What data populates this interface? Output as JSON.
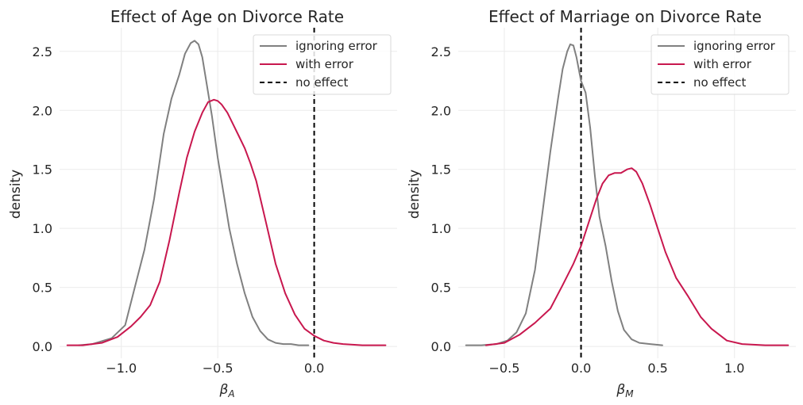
{
  "colors": {
    "ignoring": "#808080",
    "with_error": "#c8174e",
    "no_effect": "#000000"
  },
  "chart_data": [
    {
      "type": "line",
      "title": "Effect of Age on Divorce Rate",
      "xlabel_main": "β",
      "xlabel_sub": "A",
      "ylabel": "density",
      "xlim": [
        -1.32,
        0.43
      ],
      "ylim": [
        -0.1,
        2.7
      ],
      "xticks": [
        -1.0,
        -0.5,
        0.0
      ],
      "xtick_labels": [
        "−1.0",
        "−0.5",
        "0.0"
      ],
      "yticks": [
        0.0,
        0.5,
        1.0,
        1.5,
        2.0,
        2.5
      ],
      "ytick_labels": [
        "0.0",
        "0.5",
        "1.0",
        "1.5",
        "2.0",
        "2.5"
      ],
      "legend": {
        "position": "top-right",
        "entries": [
          "ignoring error",
          "with error",
          "no effect"
        ]
      },
      "vline": {
        "x": 0.0,
        "label": "no effect"
      },
      "series": [
        {
          "name": "ignoring error",
          "color": "#808080",
          "x": [
            -1.22,
            -1.15,
            -1.05,
            -0.98,
            -0.93,
            -0.88,
            -0.83,
            -0.78,
            -0.74,
            -0.7,
            -0.67,
            -0.64,
            -0.62,
            -0.6,
            -0.58,
            -0.56,
            -0.53,
            -0.5,
            -0.47,
            -0.44,
            -0.4,
            -0.36,
            -0.32,
            -0.28,
            -0.24,
            -0.2,
            -0.16,
            -0.12,
            -0.08,
            -0.04,
            -0.03
          ],
          "y": [
            0.01,
            0.02,
            0.07,
            0.18,
            0.5,
            0.82,
            1.25,
            1.8,
            2.1,
            2.3,
            2.48,
            2.57,
            2.59,
            2.56,
            2.45,
            2.25,
            1.95,
            1.6,
            1.3,
            1.0,
            0.7,
            0.45,
            0.25,
            0.13,
            0.06,
            0.03,
            0.02,
            0.02,
            0.01,
            0.01,
            0.01
          ]
        },
        {
          "name": "with error",
          "color": "#c8174e",
          "x": [
            -1.28,
            -1.2,
            -1.1,
            -1.02,
            -0.95,
            -0.9,
            -0.85,
            -0.8,
            -0.75,
            -0.7,
            -0.66,
            -0.62,
            -0.58,
            -0.55,
            -0.52,
            -0.5,
            -0.48,
            -0.45,
            -0.42,
            -0.39,
            -0.36,
            -0.33,
            -0.3,
            -0.25,
            -0.2,
            -0.15,
            -0.1,
            -0.05,
            0.0,
            0.05,
            0.1,
            0.15,
            0.25,
            0.37
          ],
          "y": [
            0.01,
            0.01,
            0.03,
            0.08,
            0.17,
            0.25,
            0.35,
            0.55,
            0.9,
            1.3,
            1.6,
            1.82,
            1.98,
            2.07,
            2.09,
            2.08,
            2.05,
            1.98,
            1.88,
            1.78,
            1.68,
            1.55,
            1.4,
            1.05,
            0.7,
            0.45,
            0.27,
            0.15,
            0.09,
            0.05,
            0.03,
            0.02,
            0.01,
            0.01
          ]
        }
      ]
    },
    {
      "type": "line",
      "title": "Effect of Marriage on Divorce Rate",
      "xlabel_main": "β",
      "xlabel_sub": "M",
      "ylabel": "density",
      "xlim": [
        -0.8,
        1.4
      ],
      "ylim": [
        -0.1,
        2.7
      ],
      "xticks": [
        -0.5,
        0.0,
        0.5,
        1.0
      ],
      "xtick_labels": [
        "−0.5",
        "0.0",
        "0.5",
        "1.0"
      ],
      "yticks": [
        0.0,
        0.5,
        1.0,
        1.5,
        2.0,
        2.5
      ],
      "ytick_labels": [
        "0.0",
        "0.5",
        "1.0",
        "1.5",
        "2.0",
        "2.5"
      ],
      "legend": {
        "position": "top-right",
        "entries": [
          "ignoring error",
          "with error",
          "no effect"
        ]
      },
      "vline": {
        "x": 0.0,
        "label": "no effect"
      },
      "series": [
        {
          "name": "ignoring error",
          "color": "#808080",
          "x": [
            -0.75,
            -0.65,
            -0.55,
            -0.48,
            -0.42,
            -0.36,
            -0.3,
            -0.25,
            -0.2,
            -0.15,
            -0.12,
            -0.09,
            -0.07,
            -0.05,
            -0.03,
            0.0,
            0.03,
            0.06,
            0.09,
            0.12,
            0.16,
            0.2,
            0.24,
            0.28,
            0.33,
            0.38,
            0.45,
            0.53
          ],
          "y": [
            0.01,
            0.01,
            0.02,
            0.05,
            0.12,
            0.28,
            0.65,
            1.15,
            1.65,
            2.1,
            2.35,
            2.5,
            2.56,
            2.55,
            2.45,
            2.25,
            2.15,
            1.85,
            1.45,
            1.1,
            0.85,
            0.55,
            0.3,
            0.14,
            0.06,
            0.03,
            0.02,
            0.01
          ]
        },
        {
          "name": "with error",
          "color": "#c8174e",
          "x": [
            -0.62,
            -0.5,
            -0.4,
            -0.3,
            -0.2,
            -0.12,
            -0.05,
            0.0,
            0.05,
            0.1,
            0.14,
            0.18,
            0.22,
            0.26,
            0.3,
            0.33,
            0.36,
            0.4,
            0.45,
            0.5,
            0.55,
            0.62,
            0.7,
            0.78,
            0.85,
            0.95,
            1.05,
            1.2,
            1.35
          ],
          "y": [
            0.01,
            0.03,
            0.1,
            0.2,
            0.32,
            0.52,
            0.7,
            0.85,
            1.05,
            1.25,
            1.38,
            1.45,
            1.47,
            1.47,
            1.5,
            1.51,
            1.48,
            1.38,
            1.2,
            1.0,
            0.8,
            0.58,
            0.42,
            0.25,
            0.15,
            0.05,
            0.02,
            0.01,
            0.01
          ]
        }
      ]
    }
  ]
}
